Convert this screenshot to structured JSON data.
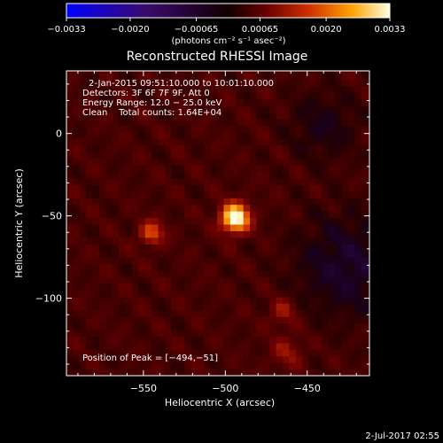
{
  "chart_data": {
    "type": "heatmap",
    "title": "Reconstructed RHESSI Image",
    "xlabel": "Heliocentric X (arcsec)",
    "ylabel": "Heliocentric Y (arcsec)",
    "xlim": [
      -597,
      -412
    ],
    "ylim": [
      -147,
      38
    ],
    "x_ticks": [
      -550,
      -500,
      -450
    ],
    "y_ticks": [
      0,
      -50,
      -100
    ],
    "x_tick_labels": [
      "−550",
      "−500",
      "−450"
    ],
    "y_tick_labels": [
      "0",
      "−50",
      "−100"
    ],
    "colorbar": {
      "range": [
        -0.0033,
        0.0033
      ],
      "ticks": [
        -0.0033,
        -0.002,
        -0.00065,
        0.00065,
        0.002,
        0.0033
      ],
      "tick_labels": [
        "−0.0033",
        "−0.0020",
        "−0.00065",
        "0.00065",
        "0.0020",
        "0.0033"
      ],
      "units": "(photons cm⁻² s⁻¹ asec⁻²)"
    },
    "sources": [
      {
        "x": -494,
        "y": -51,
        "sigma": 6,
        "amp": 0.0033
      },
      {
        "x": -545,
        "y": -60,
        "sigma": 5,
        "amp": 0.0015
      },
      {
        "x": -465,
        "y": -108,
        "sigma": 6,
        "amp": 0.0008
      },
      {
        "x": -462,
        "y": -132,
        "sigma": 7,
        "amp": 0.0007
      }
    ],
    "annotations": {
      "time": "2-Jan-2015 09:51:10.000 to 10:01:10.000",
      "detectors": "Detectors: 3F 6F 7F 9F, Att 0",
      "energy": "Energy Range: 12.0 − 25.0 keV",
      "clean": "Clean    Total counts: 1.64E+04",
      "peak": "Position of Peak = [−494,−51]"
    }
  },
  "footer": {
    "date": "2-Jul-2017 02:55"
  }
}
